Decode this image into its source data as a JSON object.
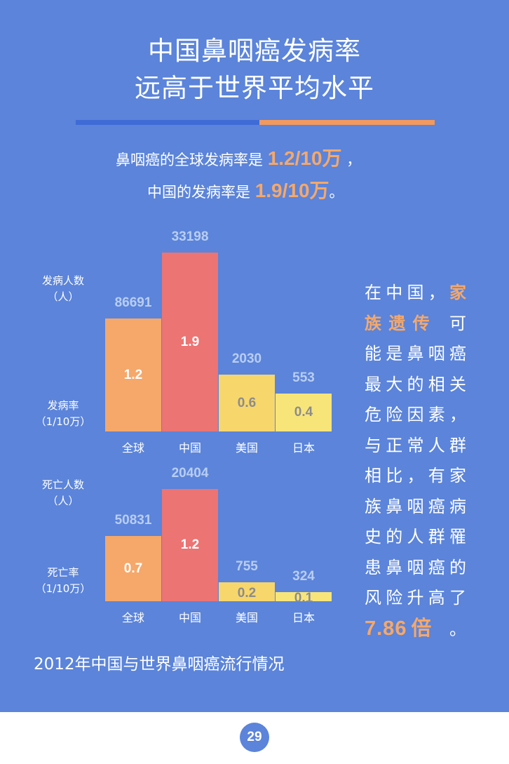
{
  "title": {
    "line1": "中国鼻咽癌发病率",
    "line2": "远高于世界平均水平"
  },
  "intro": {
    "line1_prefix": "鼻咽癌的全球发病率是 ",
    "line1_value": "1.2/10万",
    "line1_suffix": " ，",
    "line2_prefix": "中国的发病率是 ",
    "line2_value": "1.9/10万",
    "line2_suffix": "。"
  },
  "colors": {
    "background": "#5b84da",
    "divider_blue": "#3e6bd6",
    "divider_orange": "#f29a5e",
    "global": "#f5a86a",
    "china": "#ec7473",
    "usa": "#f7d66b",
    "japan": "#f8e57a",
    "highlight": "#f5a86a"
  },
  "chart_data": [
    {
      "type": "bar",
      "title": "发病",
      "categories": [
        "全球",
        "中国",
        "美国",
        "日本"
      ],
      "series": [
        {
          "name": "发病人数",
          "unit": "（人）",
          "values": [
            86691,
            33198,
            2030,
            553
          ]
        },
        {
          "name": "发病率",
          "unit": "（1/10万）",
          "values": [
            1.2,
            1.9,
            0.6,
            0.4
          ]
        }
      ],
      "bar_height_series": "发病率",
      "ylim": [
        0,
        1.9
      ],
      "ylabel_top": "发病人数",
      "ylabel_top_unit": "（人）",
      "ylabel_bottom": "发病率",
      "ylabel_bottom_unit": "（1/10万）",
      "count_labels": [
        "86691",
        "33198",
        "2030",
        "553"
      ],
      "rate_labels": [
        "1.2",
        "1.9",
        "0.6",
        "0.4"
      ]
    },
    {
      "type": "bar",
      "title": "死亡",
      "categories": [
        "全球",
        "中国",
        "美国",
        "日本"
      ],
      "series": [
        {
          "name": "死亡人数",
          "unit": "（人）",
          "values": [
            50831,
            20404,
            755,
            324
          ]
        },
        {
          "name": "死亡率",
          "unit": "（1/10万）",
          "values": [
            0.7,
            1.2,
            0.2,
            0.1
          ]
        }
      ],
      "bar_height_series": "死亡率",
      "ylim": [
        0,
        1.2
      ],
      "ylabel_top": "死亡人数",
      "ylabel_top_unit": "（人）",
      "ylabel_bottom": "死亡率",
      "ylabel_bottom_unit": "（1/10万）",
      "count_labels": [
        "50831",
        "20404",
        "755",
        "324"
      ],
      "rate_labels": [
        "0.7",
        "1.2",
        "0.2",
        "0.1"
      ]
    }
  ],
  "side_text": {
    "lines": [
      [
        {
          "t": "在中国，"
        },
        {
          "t": "家",
          "hl": true
        }
      ],
      [
        {
          "t": "族遗传",
          "hl": true
        },
        {
          "t": "  可"
        }
      ],
      [
        {
          "t": "能是鼻咽癌"
        }
      ],
      [
        {
          "t": "最大的相关"
        }
      ],
      [
        {
          "t": "危险因素，"
        }
      ],
      [
        {
          "t": "与正常人群"
        }
      ],
      [
        {
          "t": "相比，有家"
        }
      ],
      [
        {
          "t": "族鼻咽癌病"
        }
      ],
      [
        {
          "t": "史的人群罹"
        }
      ],
      [
        {
          "t": "患鼻咽癌的"
        }
      ],
      [
        {
          "t": "风险升高了"
        }
      ],
      [
        {
          "t": "7.86倍",
          "big": true
        },
        {
          "t": " 。"
        }
      ]
    ]
  },
  "caption": "2012年中国与世界鼻咽癌流行情况",
  "page_number": "29"
}
